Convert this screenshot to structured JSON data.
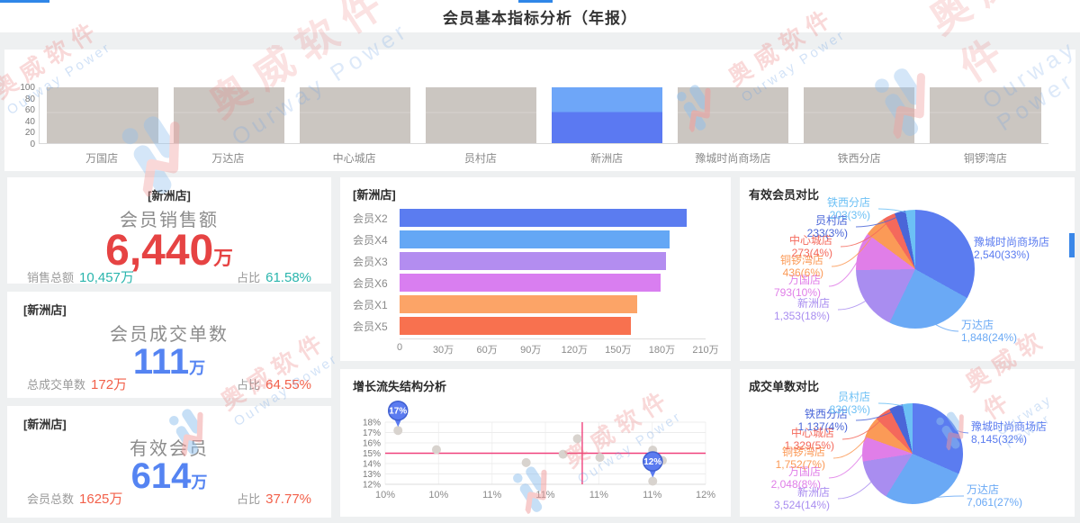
{
  "header": {
    "title": "会员基本指标分析（年报）"
  },
  "watermark": {
    "cn": "奥威软件",
    "en": "Ourway Power"
  },
  "kpi_cards": [
    {
      "store": "[新洲店]",
      "title": "会员销售额",
      "value": "6,440",
      "unit": "万",
      "value_color": "#e64343",
      "secondary_color": "#2ab5ad",
      "left_label": "销售总额",
      "left_value": "10,457万",
      "right_label": "占比",
      "right_value": "61.58%"
    },
    {
      "store": "[新洲店]",
      "title": "会员成交单数",
      "value": "111",
      "unit": "万",
      "value_color": "#5584f2",
      "secondary_color": "#f2604a",
      "left_label": "总成交单数",
      "left_value": "172万",
      "right_label": "占比",
      "right_value": "64.55%"
    },
    {
      "store": "[新洲店]",
      "title": "有效会员",
      "value": "614",
      "unit": "万",
      "value_color": "#5584f2",
      "secondary_color": "#f2604a",
      "left_label": "会员总数",
      "left_value": "1625万",
      "right_label": "占比",
      "right_value": "37.77%"
    }
  ],
  "chart_data": [
    {
      "id": "store-selector",
      "type": "bar",
      "title": "",
      "categories": [
        "万国店",
        "万达店",
        "中心城店",
        "员村店",
        "新洲店",
        "豫城时尚商场店",
        "铁西分店",
        "铜锣湾店"
      ],
      "values": [
        100,
        100,
        100,
        100,
        100,
        100,
        100,
        100
      ],
      "selected_index": 4,
      "selected_category": "新洲店",
      "ylim": [
        0,
        100
      ],
      "yticks": [
        "100",
        "80",
        "60",
        "40",
        "20",
        "0"
      ],
      "bar_color": "#cbc6c1",
      "selected_colors": [
        "#6ea6f8",
        "#5b79f2"
      ]
    },
    {
      "id": "member-types",
      "type": "bar",
      "orientation": "horizontal",
      "title": "[新洲店]",
      "categories": [
        "会员X2",
        "会员X4",
        "会员X3",
        "会员X6",
        "会员X1",
        "会员X5"
      ],
      "values": [
        197,
        185,
        183,
        179,
        163,
        159
      ],
      "unit": "万",
      "xlim": [
        0,
        210
      ],
      "xticks": [
        "0",
        "30万",
        "60万",
        "90万",
        "120万",
        "150万",
        "180万",
        "210万"
      ],
      "colors": [
        "#5b7cf0",
        "#64a7f5",
        "#b38df0",
        "#d97ef0",
        "#fca467",
        "#f8714f"
      ]
    },
    {
      "id": "growth-churn",
      "type": "scatter",
      "title": "增长流失结构分析",
      "xlim": [
        10,
        12
      ],
      "ylim": [
        12,
        18
      ],
      "yticks": [
        "18%",
        "17%",
        "16%",
        "15%",
        "14%",
        "13%",
        "12%"
      ],
      "xticks": [
        "10%",
        "10%",
        "11%",
        "11%",
        "11%",
        "11%",
        "12%"
      ],
      "points": [
        {
          "x": 10.08,
          "y": 17.2
        },
        {
          "x": 10.32,
          "y": 15.35
        },
        {
          "x": 10.88,
          "y": 14.1
        },
        {
          "x": 11.11,
          "y": 14.9
        },
        {
          "x": 11.2,
          "y": 16.4
        },
        {
          "x": 11.34,
          "y": 14.6
        },
        {
          "x": 11.67,
          "y": 15.3
        },
        {
          "x": 11.73,
          "y": 14.3
        },
        {
          "x": 11.67,
          "y": 12.3
        }
      ],
      "callouts": [
        {
          "point": 0,
          "label": "17%"
        },
        {
          "point": 8,
          "label": "12%"
        }
      ],
      "crosshair": {
        "x": 11.23,
        "y": 15
      },
      "dot_color": "#d8d3ce",
      "crosshair_color": "#f0417c",
      "callout_color": "#5b7bf0"
    },
    {
      "id": "valid-members-pie",
      "type": "pie",
      "title": "有效会员对比",
      "slices": [
        {
          "name": "豫城时尚商场店",
          "value": "2,540",
          "pct": 33,
          "color": "#5b7cf0"
        },
        {
          "name": "万达店",
          "value": "1,848",
          "pct": 24,
          "color": "#6aa9f5"
        },
        {
          "name": "新洲店",
          "value": "1,353",
          "pct": 18,
          "color": "#a98df0"
        },
        {
          "name": "万国店",
          "value": "793",
          "pct": 10,
          "color": "#e07ee8"
        },
        {
          "name": "铜锣湾店",
          "value": "436",
          "pct": 6,
          "color": "#fb9a57"
        },
        {
          "name": "中心城店",
          "value": "273",
          "pct": 4,
          "color": "#f4695c"
        },
        {
          "name": "员村店",
          "value": "233",
          "pct": 3,
          "color": "#4a66d8"
        },
        {
          "name": "铁西分店",
          "value": "203",
          "pct": 3,
          "color": "#6cc0f5"
        }
      ]
    },
    {
      "id": "orders-pie",
      "type": "pie",
      "title": "成交单数对比",
      "slices": [
        {
          "name": "豫城时尚商场店",
          "value": "8,145",
          "pct": 32,
          "color": "#5b7cf0"
        },
        {
          "name": "万达店",
          "value": "7,061",
          "pct": 27,
          "color": "#6aa9f5"
        },
        {
          "name": "新洲店",
          "value": "3,524",
          "pct": 14,
          "color": "#a98df0"
        },
        {
          "name": "万国店",
          "value": "2,048",
          "pct": 8,
          "color": "#e07ee8"
        },
        {
          "name": "铜锣湾店",
          "value": "1,752",
          "pct": 7,
          "color": "#fb9a57"
        },
        {
          "name": "中心城店",
          "value": "1,329",
          "pct": 5,
          "color": "#f4695c"
        },
        {
          "name": "铁西分店",
          "value": "1,137",
          "pct": 4,
          "color": "#4a66d8"
        },
        {
          "name": "员村店",
          "value": "830",
          "pct": 3,
          "color": "#6cc0f5"
        }
      ]
    }
  ]
}
